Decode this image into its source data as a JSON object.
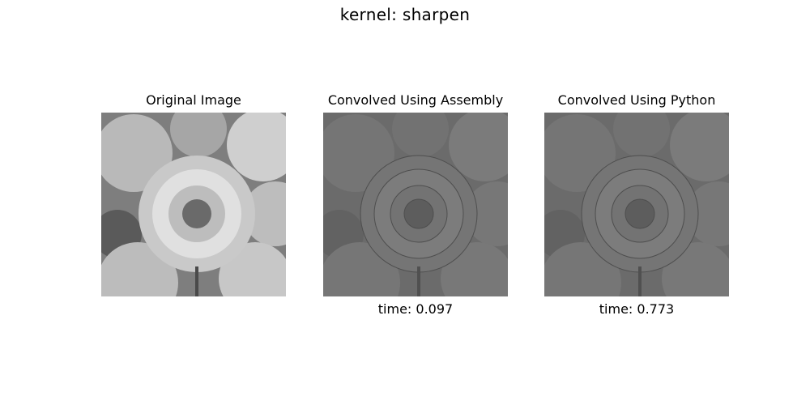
{
  "figure": {
    "title": "kernel: sharpen"
  },
  "panels": [
    {
      "title": "Original Image",
      "caption": "",
      "tone": "original"
    },
    {
      "title": "Convolved Using Assembly",
      "caption": "time: 0.097",
      "tone": "sharpened"
    },
    {
      "title": "Convolved Using Python",
      "caption": "time: 0.773",
      "tone": "sharpened"
    }
  ]
}
